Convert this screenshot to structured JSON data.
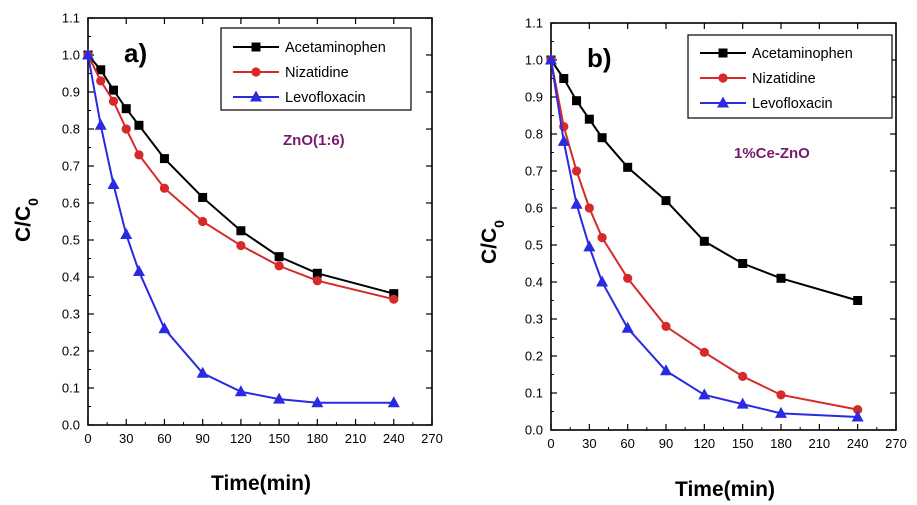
{
  "chart_data": [
    {
      "type": "line",
      "panel_label": "a)",
      "annotation": "ZnO(1:6)",
      "xlabel": "Time(min)",
      "ylabel_main": "C/C",
      "ylabel_sub": "0",
      "xlim": [
        0,
        270
      ],
      "ylim": [
        0,
        1.1
      ],
      "xticks": [
        0,
        30,
        60,
        90,
        120,
        150,
        180,
        210,
        240,
        270
      ],
      "yticks": [
        0.0,
        0.1,
        0.2,
        0.3,
        0.4,
        0.5,
        0.6,
        0.7,
        0.8,
        0.9,
        1.0,
        1.1
      ],
      "legend_position": "top-right",
      "grid": false,
      "series": [
        {
          "name": "Acetaminophen",
          "color": "#000000",
          "marker": "square",
          "x": [
            0,
            10,
            20,
            30,
            40,
            60,
            90,
            120,
            150,
            180,
            240
          ],
          "y": [
            1.0,
            0.96,
            0.905,
            0.855,
            0.81,
            0.72,
            0.615,
            0.525,
            0.455,
            0.41,
            0.355
          ]
        },
        {
          "name": "Nizatidine",
          "color": "#d62a2a",
          "marker": "circle",
          "x": [
            0,
            10,
            20,
            30,
            40,
            60,
            90,
            120,
            150,
            180,
            240
          ],
          "y": [
            1.0,
            0.93,
            0.875,
            0.8,
            0.73,
            0.64,
            0.55,
            0.485,
            0.43,
            0.39,
            0.34
          ]
        },
        {
          "name": "Levofloxacin",
          "color": "#2a2ae0",
          "marker": "triangle",
          "x": [
            0,
            10,
            20,
            30,
            40,
            60,
            90,
            120,
            150,
            180,
            240
          ],
          "y": [
            1.0,
            0.81,
            0.65,
            0.515,
            0.415,
            0.26,
            0.14,
            0.09,
            0.07,
            0.06,
            0.06
          ]
        }
      ]
    },
    {
      "type": "line",
      "panel_label": "b)",
      "annotation": "1%Ce-ZnO",
      "xlabel": "Time(min)",
      "ylabel_main": "C/C",
      "ylabel_sub": "0",
      "xlim": [
        0,
        270
      ],
      "ylim": [
        0,
        1.1
      ],
      "xticks": [
        0,
        30,
        60,
        90,
        120,
        150,
        180,
        210,
        240,
        270
      ],
      "yticks": [
        0.0,
        0.1,
        0.2,
        0.3,
        0.4,
        0.5,
        0.6,
        0.7,
        0.8,
        0.9,
        1.0,
        1.1
      ],
      "legend_position": "top-right",
      "grid": false,
      "series": [
        {
          "name": "Acetaminophen",
          "color": "#000000",
          "marker": "square",
          "x": [
            0,
            10,
            20,
            30,
            40,
            60,
            90,
            120,
            150,
            180,
            240
          ],
          "y": [
            1.0,
            0.95,
            0.89,
            0.84,
            0.79,
            0.71,
            0.62,
            0.51,
            0.45,
            0.41,
            0.35
          ]
        },
        {
          "name": "Nizatidine",
          "color": "#d62a2a",
          "marker": "circle",
          "x": [
            0,
            10,
            20,
            30,
            40,
            60,
            90,
            120,
            150,
            180,
            240
          ],
          "y": [
            1.0,
            0.82,
            0.7,
            0.6,
            0.52,
            0.41,
            0.28,
            0.21,
            0.145,
            0.095,
            0.055
          ]
        },
        {
          "name": "Levofloxacin",
          "color": "#2a2ae0",
          "marker": "triangle",
          "x": [
            0,
            10,
            20,
            30,
            40,
            60,
            90,
            120,
            150,
            180,
            240
          ],
          "y": [
            1.0,
            0.78,
            0.61,
            0.495,
            0.4,
            0.275,
            0.16,
            0.095,
            0.07,
            0.045,
            0.035
          ]
        }
      ]
    }
  ]
}
